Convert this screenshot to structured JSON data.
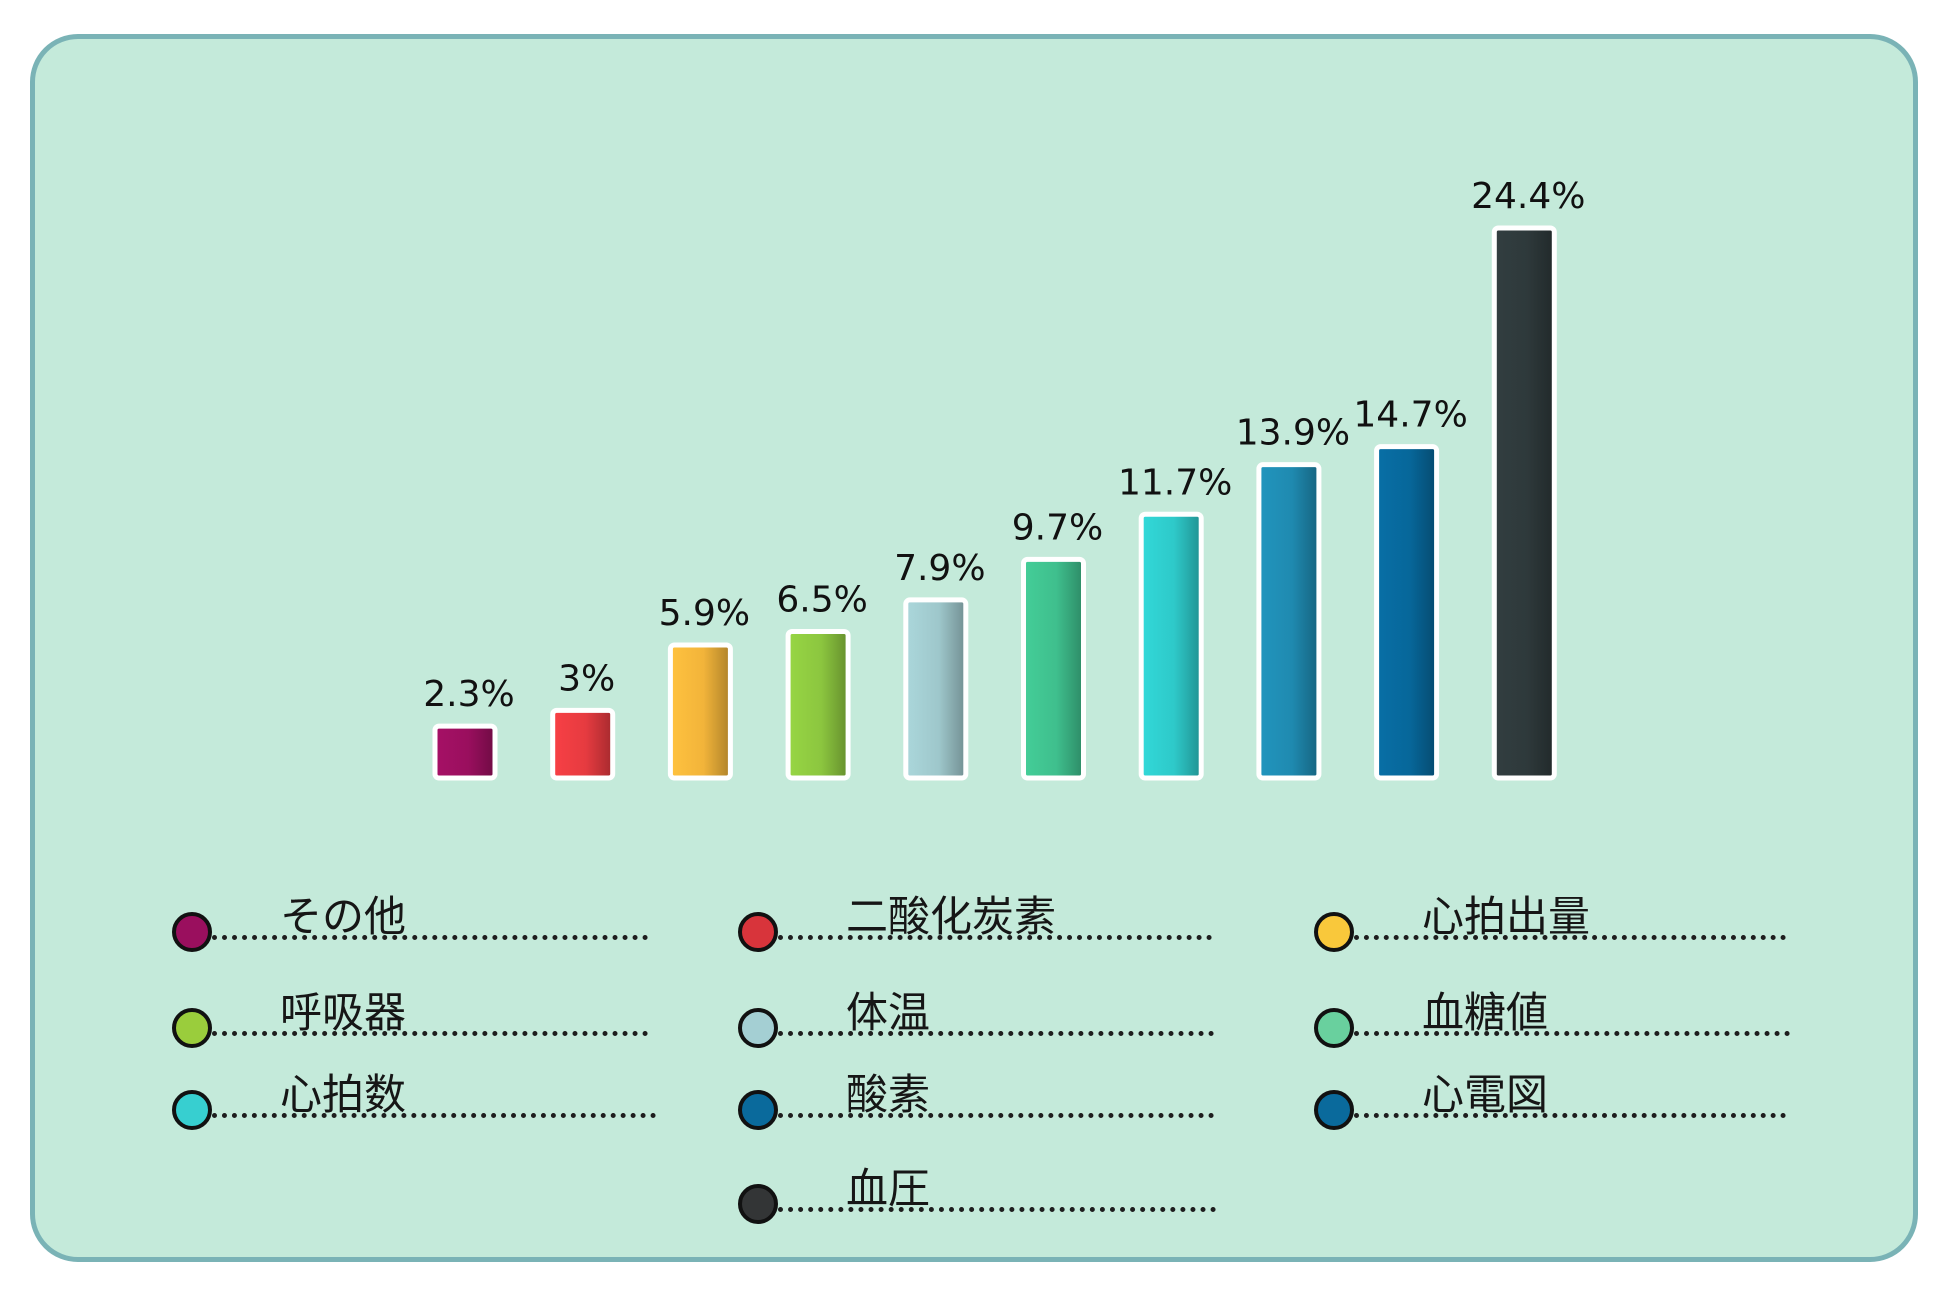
{
  "chart_data": {
    "type": "bar",
    "title": "",
    "xlabel": "",
    "ylabel": "",
    "ylim": [
      0,
      24.4
    ],
    "grid": false,
    "legend_position": "bottom",
    "categories": [
      "その他",
      "二酸化炭素",
      "心拍出量",
      "呼吸器",
      "体温",
      "血糖値",
      "心拍数",
      "酸素",
      "心電図",
      "血圧"
    ],
    "values": [
      2.3,
      3,
      5.9,
      6.5,
      7.9,
      9.7,
      11.7,
      13.9,
      14.7,
      24.4
    ],
    "value_labels": [
      "2.3%",
      "3%",
      "5.9%",
      "6.5%",
      "7.9%",
      "9.7%",
      "11.7%",
      "13.9%",
      "14.7%",
      "24.4%"
    ],
    "colors": [
      "#9a0f5e",
      "#e63b40",
      "#f2b43a",
      "#8cc63f",
      "#9ec7cb",
      "#3fbf8d",
      "#2ec9c9",
      "#1f8ab0",
      "#07679a",
      "#2e393b"
    ]
  },
  "legend": {
    "items": [
      {
        "label": "その他",
        "color": "#9a0f5e"
      },
      {
        "label": "二酸化炭素",
        "color": "#d8343b"
      },
      {
        "label": "心拍出量",
        "color": "#f9c83b"
      },
      {
        "label": "呼吸器",
        "color": "#9acd3c"
      },
      {
        "label": "体温",
        "color": "#a4cfd3"
      },
      {
        "label": "血糖値",
        "color": "#69d09e"
      },
      {
        "label": "心拍数",
        "color": "#37cfd0"
      },
      {
        "label": "酸素",
        "color": "#0a6a9c"
      },
      {
        "label": "心電図",
        "color": "#0a6a9c"
      },
      {
        "label": "血圧",
        "color": "#333536"
      }
    ]
  }
}
